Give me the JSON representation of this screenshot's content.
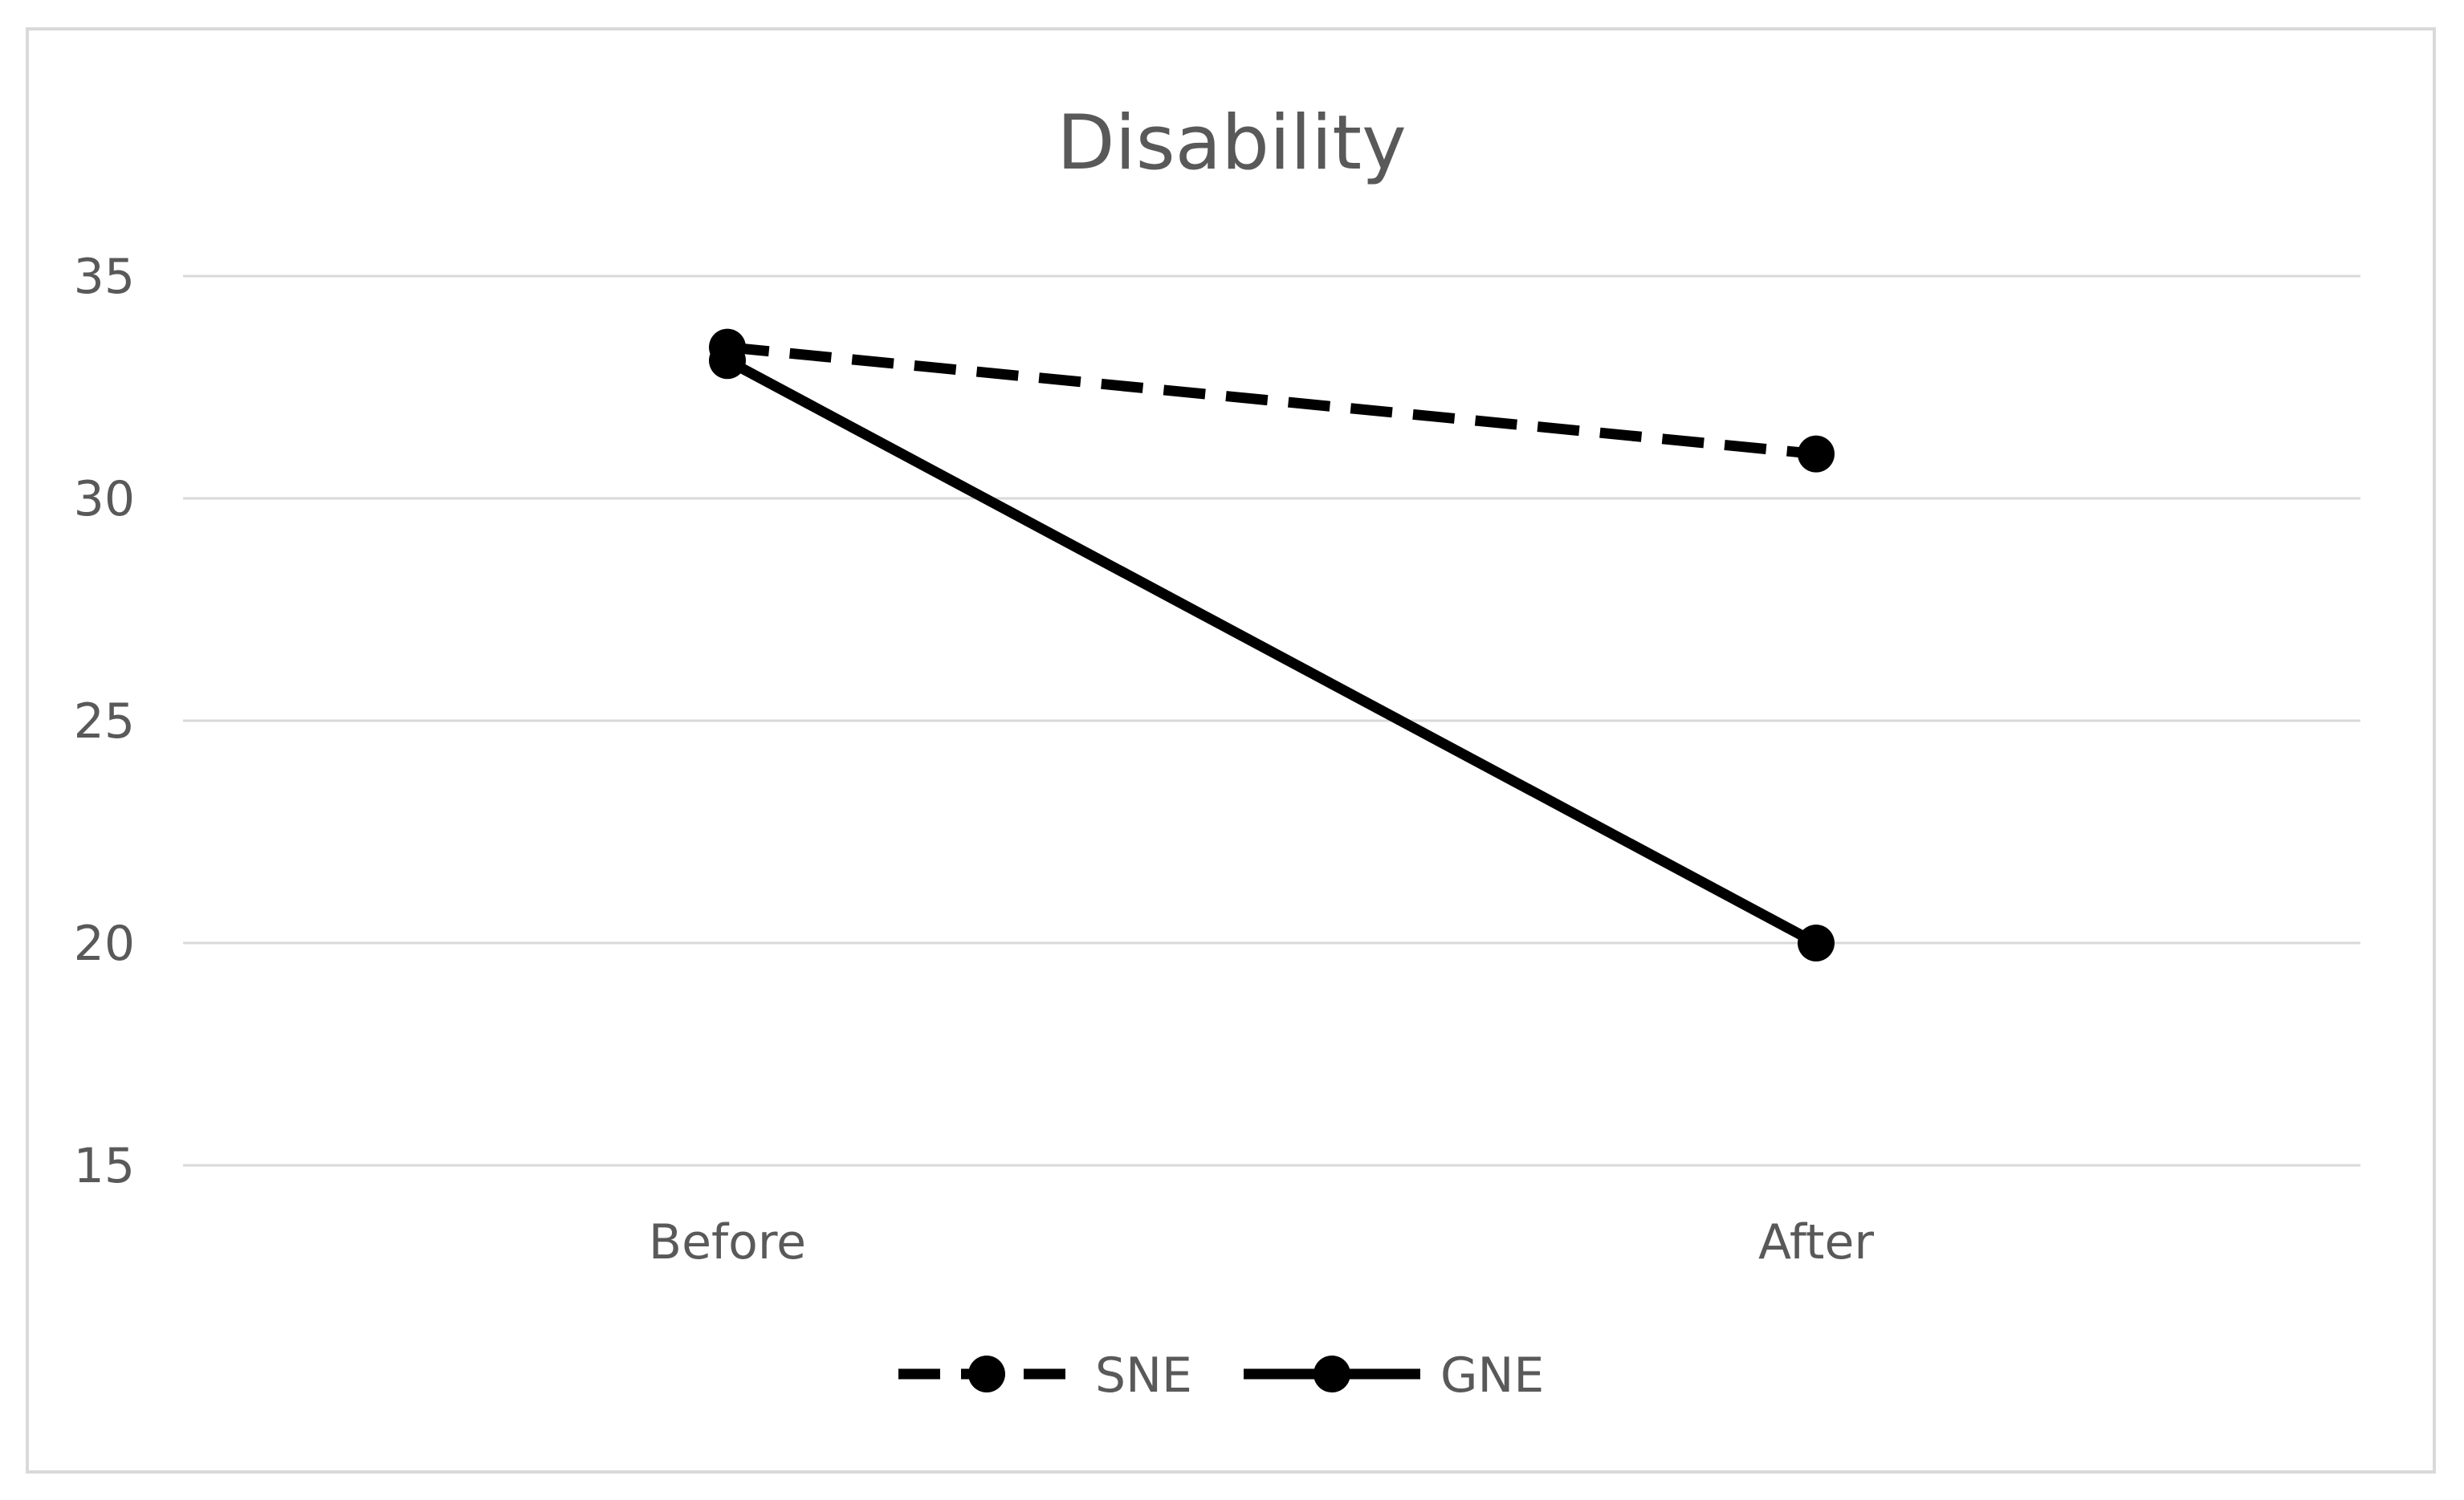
{
  "chart_data": {
    "type": "line",
    "title": "Disability",
    "xlabel": "",
    "ylabel": "",
    "categories": [
      "Before",
      "After"
    ],
    "ylim": [
      15,
      35
    ],
    "yticks": [
      15,
      20,
      25,
      30,
      35
    ],
    "grid": true,
    "legend_position": "bottom",
    "series": [
      {
        "name": "SNE",
        "values": [
          33.4,
          31.0
        ],
        "line_style": "dashed",
        "color": "#000000",
        "marker": "circle"
      },
      {
        "name": "GNE",
        "values": [
          33.1,
          20.0
        ],
        "line_style": "solid",
        "color": "#000000",
        "marker": "circle"
      }
    ]
  }
}
